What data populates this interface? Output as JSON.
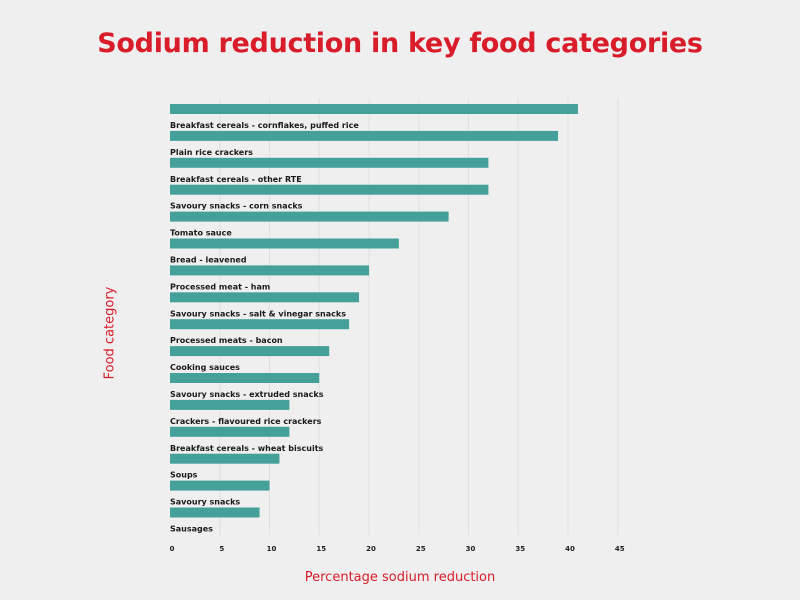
{
  "chart_data": {
    "type": "bar",
    "orientation": "horizontal",
    "title": "Sodium reduction in key food categories",
    "xlabel": "Percentage sodium reduction",
    "ylabel": "Food category",
    "xlim": [
      0,
      45
    ],
    "xticks": [
      0,
      5,
      10,
      15,
      20,
      25,
      30,
      35,
      40,
      45
    ],
    "grid": "vertical",
    "bar_color": "#45a09a",
    "title_color": "#d81c2a",
    "categories": [
      "Breakfast cereals - cornflakes, puffed rice",
      "Plain rice crackers",
      "Breakfast cereals - other RTE",
      "Savoury snacks - corn snacks",
      "Tomato sauce",
      "Bread - leavened",
      "Processed meat - ham",
      "Savoury snacks - salt & vinegar snacks",
      "Processed meats - bacon",
      "Cooking sauces",
      "Savoury snacks - extruded snacks",
      "Crackers - flavoured rice crackers",
      "Breakfast cereals - wheat biscuits",
      "Soups",
      "Savoury snacks",
      "Sausages"
    ],
    "values": [
      41,
      39,
      32,
      32,
      28,
      23,
      20,
      19,
      18,
      16,
      15,
      12,
      12,
      11,
      10,
      9
    ]
  }
}
